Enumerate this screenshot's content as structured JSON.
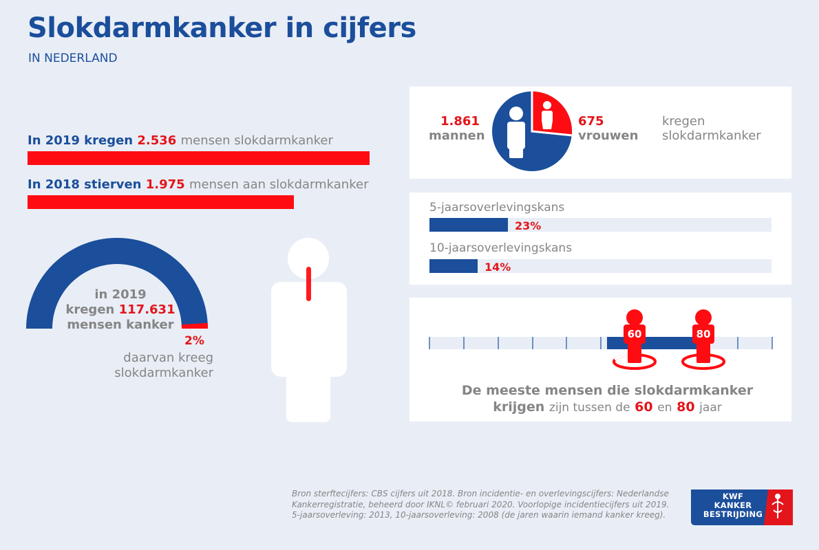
{
  "title": "Slokdarmkanker in cijfers",
  "subtitle": "IN NEDERLAND",
  "incidence": {
    "prefix": "In 2019 kregen",
    "value": "2.536",
    "suffix": "mensen slokdarmkanker",
    "number": 2536
  },
  "deaths": {
    "prefix": "In 2018 stierven",
    "value": "1.975",
    "suffix": "mensen aan slokdarmkanker",
    "number": 1975
  },
  "all_cancer": {
    "line1": "in 2019",
    "line2_prefix": "kregen",
    "line2_value": "117.631",
    "line3": "mensen kanker",
    "percent_label": "2%",
    "percent": 2,
    "caption_line1": "daarvan kreeg",
    "caption_line2": "slokdarmkanker"
  },
  "gender": {
    "men_value": "1.861",
    "men_label": "mannen",
    "men": 1861,
    "women_value": "675",
    "women_label": "vrouwen",
    "women": 675,
    "caption_line1": "kregen",
    "caption_line2": "slokdarmkanker"
  },
  "survival": [
    {
      "label": "5-jaarsoverlevingskans",
      "value_label": "23%",
      "value": 23
    },
    {
      "label": "10-jaarsoverlevingskans",
      "value_label": "14%",
      "value": 14
    }
  ],
  "age": {
    "from_label": "60",
    "to_label": "80",
    "caption_part1": "De meeste mensen die slokdarmkanker",
    "caption_part2": "krijgen",
    "caption_part3": "zijn tussen de",
    "caption_from": "60",
    "caption_and": "en",
    "caption_to": "80",
    "caption_end": "jaar"
  },
  "source": "Bron sterftecijfers: CBS cijfers uit 2018. Bron incidentie- en overlevingscijfers: Nederlandse Kankerregistratie, beheerd door IKNL© februari 2020. Voorlopige incidentiecijfers uit 2019. 5-jaarsoverleving: 2013, 10-jaarsoverleving: 2008 (de jaren waarin iemand kanker kreeg).",
  "logo": {
    "line1": "KWF",
    "line2": "KANKER",
    "line3": "BESTRIJDING"
  },
  "colors": {
    "blue": "#1b4e9b",
    "red": "#e3151a",
    "grey": "#858585",
    "background": "#e9eef6"
  }
}
